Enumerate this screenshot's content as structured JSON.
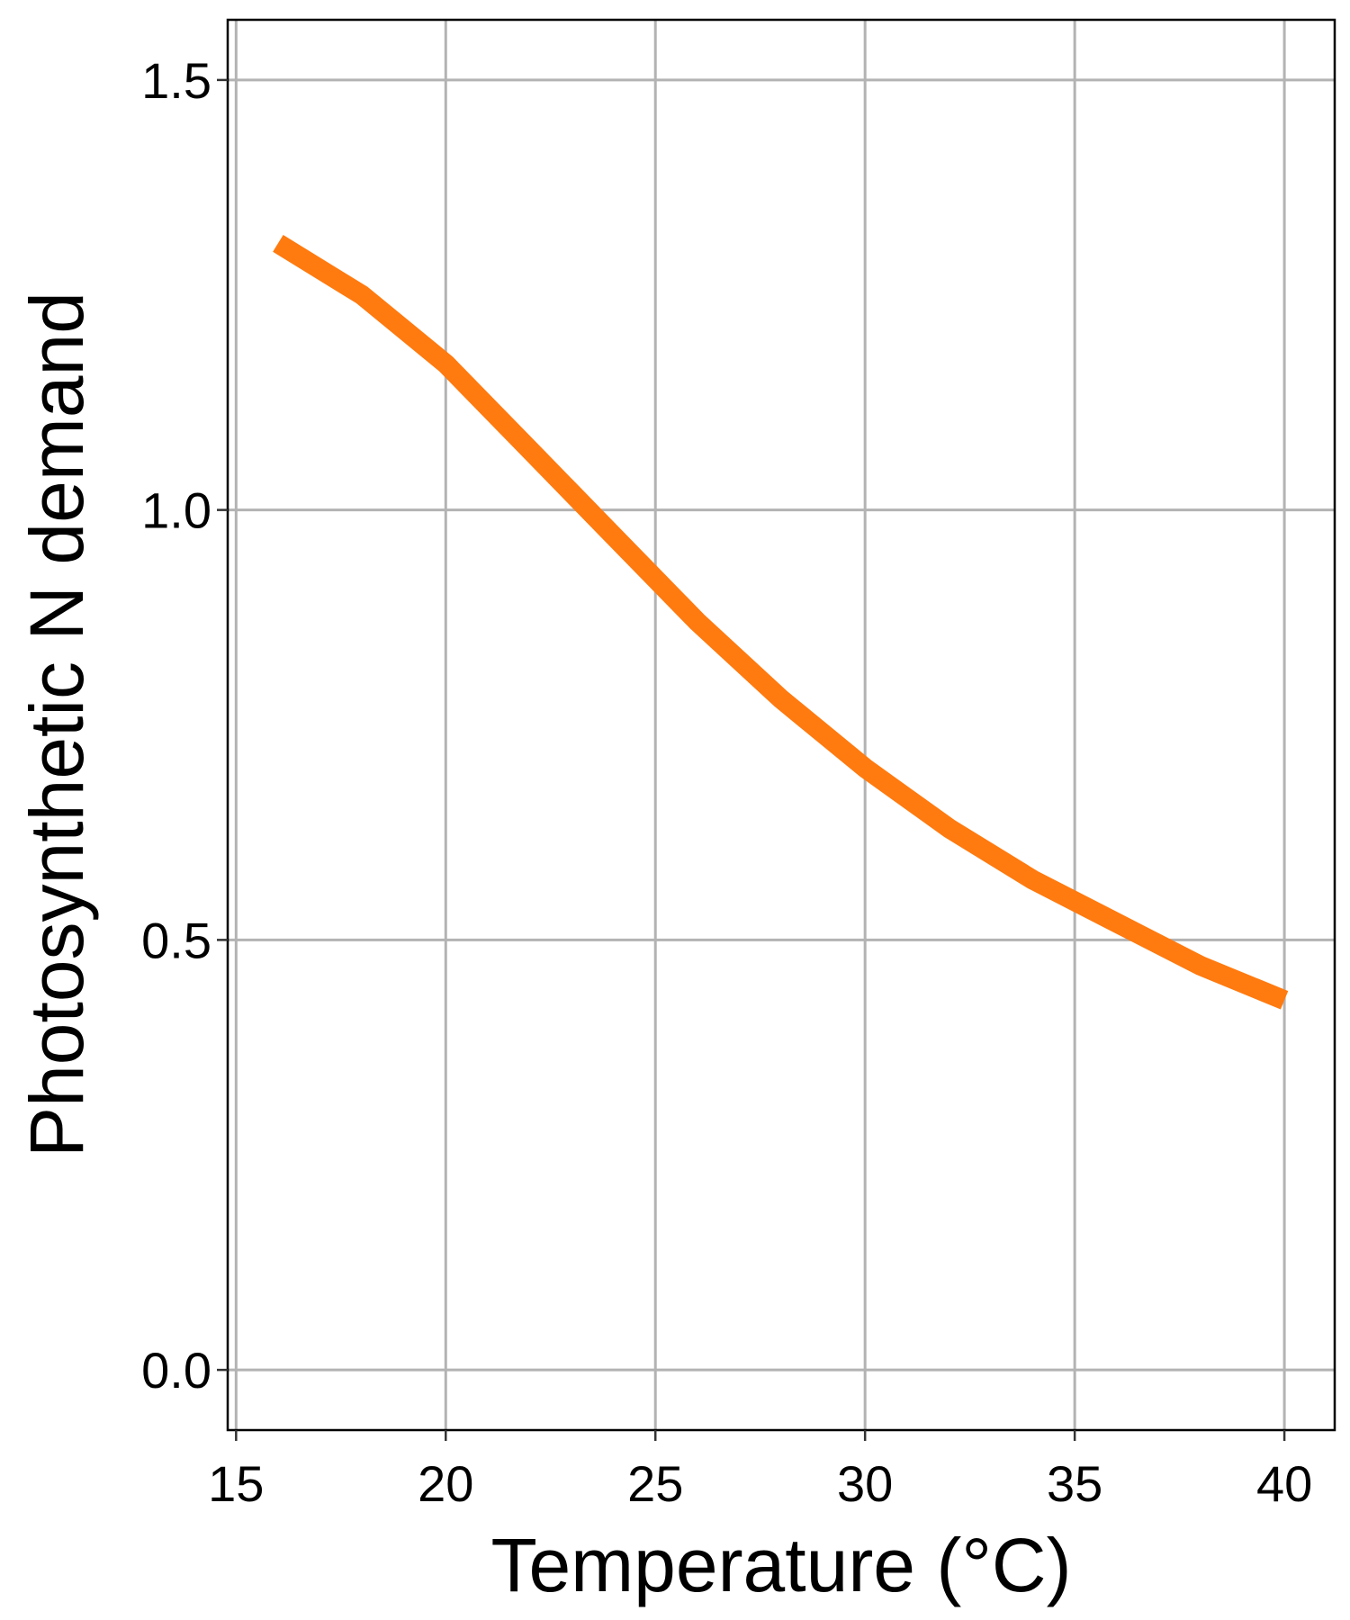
{
  "chart_data": {
    "type": "line",
    "title": "",
    "xlabel": "Temperature (°C)",
    "ylabel": "Photosynthetic N demand",
    "xlim": [
      14.8,
      41.2
    ],
    "ylim": [
      -0.07,
      1.57
    ],
    "x_ticks": [
      15,
      20,
      25,
      30,
      35,
      40
    ],
    "x_tick_labels": [
      "15",
      "20",
      "25",
      "30",
      "35",
      "40"
    ],
    "y_ticks": [
      0.0,
      0.5,
      1.0,
      1.5
    ],
    "y_tick_labels": [
      "0.0",
      "0.5",
      "1.0",
      "1.5"
    ],
    "grid": true,
    "legend": "none",
    "series": [
      {
        "color": "#FF7A0F",
        "x": [
          16,
          18,
          20,
          22,
          24,
          26,
          28,
          30,
          32,
          34,
          36,
          38,
          40
        ],
        "y": [
          1.31,
          1.25,
          1.17,
          1.07,
          0.97,
          0.87,
          0.78,
          0.7,
          0.63,
          0.57,
          0.52,
          0.47,
          0.43
        ]
      }
    ]
  }
}
